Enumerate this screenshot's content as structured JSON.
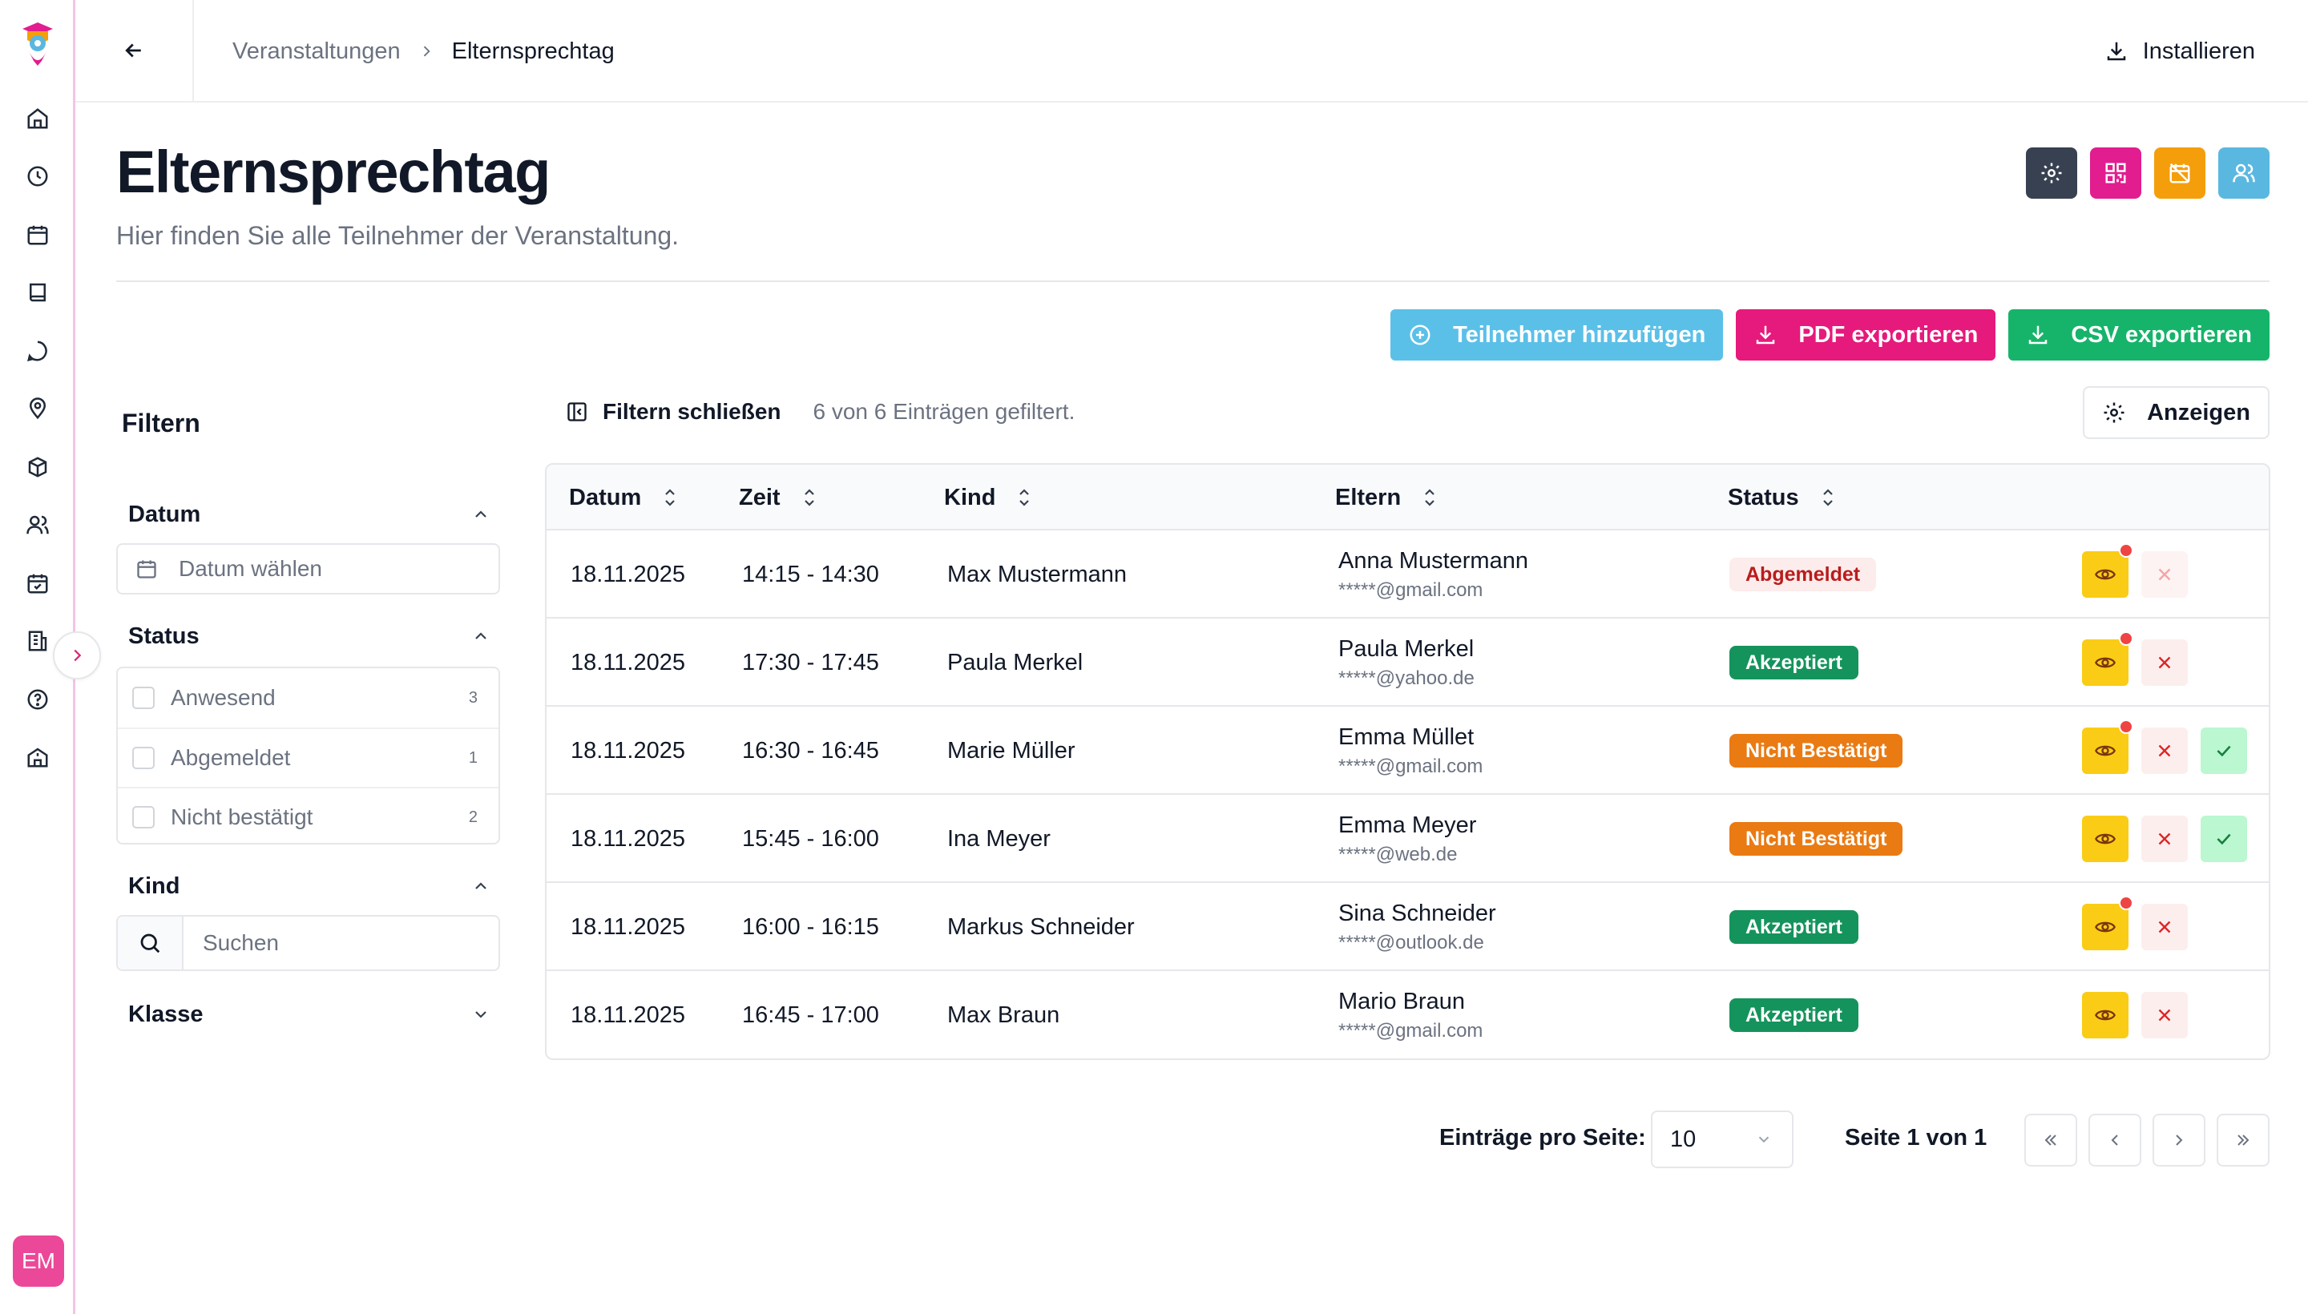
{
  "app": {
    "avatar_initials": "EM"
  },
  "topbar": {
    "breadcrumb": [
      "Veranstaltungen",
      "Elternsprechtag"
    ],
    "install_label": "Installieren"
  },
  "header": {
    "title": "Elternsprechtag",
    "subtitle": "Hier finden Sie alle Teilnehmer der Veranstaltung.",
    "action_colors": [
      "#374151",
      "#e11d8f",
      "#f59e0b",
      "#5ab8e0"
    ]
  },
  "actions": {
    "add_label": "Teilnehmer hinzufügen",
    "pdf_label": "PDF exportieren",
    "csv_label": "CSV exportieren",
    "add_color": "#5bc0e8",
    "pdf_color": "#e6197c",
    "csv_color": "#16b46a"
  },
  "filters": {
    "title": "Filtern",
    "date": {
      "label": "Datum",
      "placeholder": "Datum wählen"
    },
    "status": {
      "label": "Status",
      "options": [
        {
          "label": "Anwesend",
          "count": "3"
        },
        {
          "label": "Abgemeldet",
          "count": "1"
        },
        {
          "label": "Nicht bestätigt",
          "count": "2"
        }
      ]
    },
    "kind": {
      "label": "Kind",
      "placeholder": "Suchen"
    },
    "klasse": {
      "label": "Klasse"
    }
  },
  "toolbar": {
    "close_filter_label": "Filtern schließen",
    "count_text": "6 von 6 Einträgen gefiltert.",
    "show_label": "Anzeigen"
  },
  "table": {
    "columns": [
      "Datum",
      "Zeit",
      "Kind",
      "Eltern",
      "Status"
    ],
    "rows": [
      {
        "date": "18.11.2025",
        "time": "14:15 - 14:30",
        "child": "Max Mustermann",
        "parent": "Anna Mustermann",
        "email": "*****@gmail.com",
        "status": "Abgemeldet"
      },
      {
        "date": "18.11.2025",
        "time": "17:30 - 17:45",
        "child": "Paula Merkel",
        "parent": "Paula Merkel",
        "email": "*****@yahoo.de",
        "status": "Akzeptiert"
      },
      {
        "date": "18.11.2025",
        "time": "16:30 - 16:45",
        "child": "Marie Müller",
        "parent": "Emma Müllet",
        "email": "*****@gmail.com",
        "status": "Nicht Bestätigt"
      },
      {
        "date": "18.11.2025",
        "time": "15:45 - 16:00",
        "child": "Ina Meyer",
        "parent": "Emma Meyer",
        "email": "*****@web.de",
        "status": "Nicht Bestätigt"
      },
      {
        "date": "18.11.2025",
        "time": "16:00 - 16:15",
        "child": "Markus Schneider",
        "parent": "Sina Schneider",
        "email": "*****@outlook.de",
        "status": "Akzeptiert"
      },
      {
        "date": "18.11.2025",
        "time": "16:45 - 17:00",
        "child": "Max Braun",
        "parent": "Mario Braun",
        "email": "*****@gmail.com",
        "status": "Akzeptiert"
      }
    ]
  },
  "status_colors": {
    "Abgemeldet": {
      "bg": "#fdecec",
      "fg": "#b91c1c"
    },
    "Akzeptiert": {
      "bg": "#15935c",
      "fg": "#ffffff"
    },
    "Nicht Bestätigt": {
      "bg": "#ea7a12",
      "fg": "#ffffff"
    }
  },
  "pagination": {
    "per_page_label": "Einträge pro Seite:",
    "per_page_value": "10",
    "page_label": "Seite 1 von 1"
  }
}
